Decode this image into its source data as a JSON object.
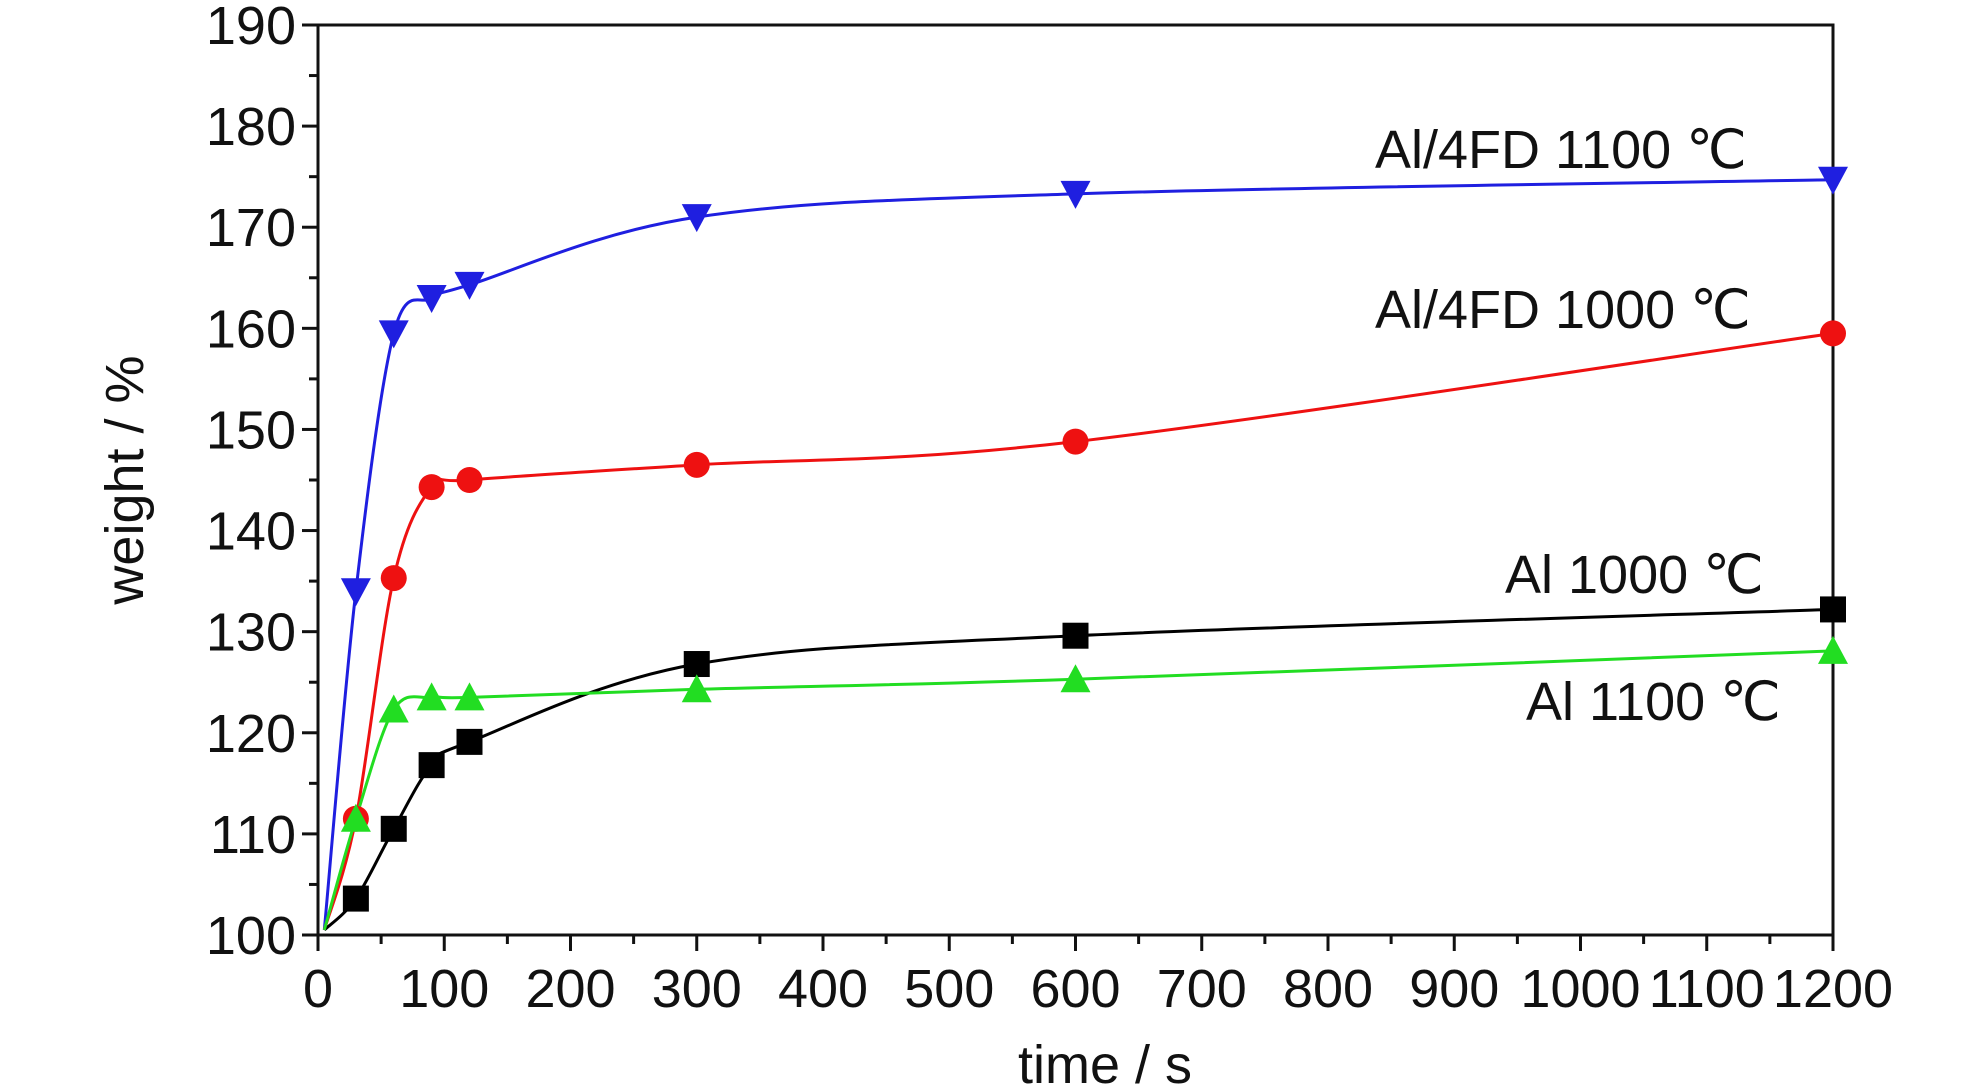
{
  "chart_data": {
    "type": "line",
    "xlabel": "time / s",
    "ylabel": "weight / %",
    "xlim": [
      0,
      1200
    ],
    "ylim": [
      100,
      190
    ],
    "xticks": [
      "0",
      "100",
      "200",
      "300",
      "400",
      "500",
      "600",
      "700",
      "800",
      "900",
      "1000",
      "1100",
      "1200"
    ],
    "yticks": [
      "100",
      "110",
      "120",
      "130",
      "140",
      "150",
      "160",
      "170",
      "180",
      "190"
    ],
    "grid": false,
    "legend": "inline labels near series ends",
    "series": [
      {
        "name": "Al/4FD  1100 ℃",
        "marker": "triangle-down",
        "color": "#1f1fe0",
        "x": [
          5,
          30,
          60,
          90,
          120,
          300,
          600,
          1200
        ],
        "y": [
          100.5,
          134.0,
          159.5,
          163.0,
          164.3,
          171.0,
          173.3,
          174.7
        ]
      },
      {
        "name": "Al/4FD  1000 ℃",
        "marker": "circle",
        "color": "#ee1111",
        "x": [
          5,
          30,
          60,
          90,
          120,
          300,
          600,
          1200
        ],
        "y": [
          100.5,
          111.5,
          135.3,
          144.3,
          145.0,
          146.5,
          148.8,
          159.5
        ]
      },
      {
        "name": "Al  1000 ℃",
        "marker": "square",
        "color": "#000000",
        "x": [
          5,
          30,
          60,
          90,
          120,
          300,
          600,
          1200
        ],
        "y": [
          100.5,
          103.6,
          110.5,
          116.8,
          119.1,
          126.8,
          129.6,
          132.2
        ]
      },
      {
        "name": "Al  1100 ℃",
        "marker": "triangle-up",
        "color": "#22dd22",
        "x": [
          5,
          30,
          60,
          90,
          120,
          300,
          600,
          1200
        ],
        "y": [
          100.5,
          111.5,
          122.3,
          123.5,
          123.5,
          124.3,
          125.3,
          128.1
        ]
      }
    ]
  }
}
